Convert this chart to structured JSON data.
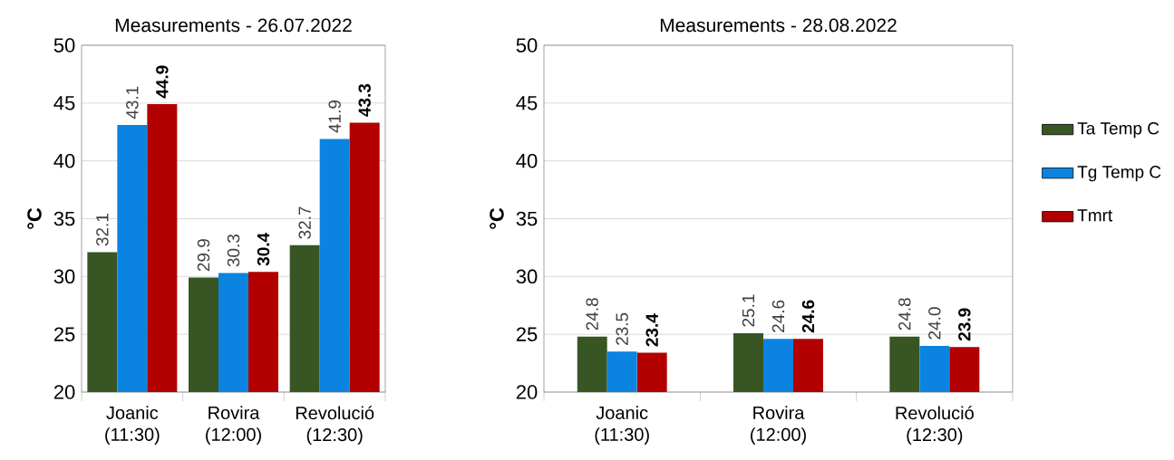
{
  "chart_data": [
    {
      "type": "bar",
      "title": "Measurements - 26.07.2022",
      "ylabel": "°C",
      "categories": [
        "Joanic (11:30)",
        "Rovira (12:00)",
        "Revolució (12:30)"
      ],
      "series": [
        {
          "color": "#375623",
          "values": [
            32.1,
            29.9,
            32.7
          ],
          "value_labels": [
            "32.1",
            "29.9",
            "32.7"
          ]
        },
        {
          "color": "#0a84e0",
          "values": [
            43.1,
            30.3,
            41.9
          ],
          "value_labels": [
            "43.1",
            "30.3",
            "41.9"
          ]
        },
        {
          "color": "#b20000",
          "values": [
            44.9,
            30.4,
            43.3
          ],
          "value_labels": [
            "44.9",
            "30.4",
            "43.3"
          ]
        }
      ],
      "ylim": [
        20,
        50
      ],
      "yticks": [
        20,
        25,
        30,
        35,
        40,
        45,
        50
      ],
      "grid": "y"
    },
    {
      "type": "bar",
      "title": "Measurements - 28.08.2022",
      "ylabel": "°C",
      "categories": [
        "Joanic (11:30)",
        "Rovira (12:00)",
        "Revolució (12:30)"
      ],
      "series": [
        {
          "name": "Ta Temp C",
          "color": "#375623",
          "values": [
            24.8,
            25.1,
            24.8
          ],
          "value_labels": [
            "24.8",
            "25.1",
            "24.8"
          ]
        },
        {
          "name": "Tg Temp C",
          "color": "#0a84e0",
          "values": [
            23.5,
            24.6,
            24.0
          ],
          "value_labels": [
            "23.5",
            "24.6",
            "24.0"
          ]
        },
        {
          "name": "Tmrt",
          "color": "#b20000",
          "values": [
            23.4,
            24.6,
            23.9
          ],
          "value_labels": [
            "23.4",
            "24.6",
            "23.9"
          ]
        }
      ],
      "ylim": [
        20,
        50
      ],
      "yticks": [
        20,
        25,
        30,
        35,
        40,
        45,
        50
      ],
      "grid": "y",
      "legend": "right"
    }
  ]
}
